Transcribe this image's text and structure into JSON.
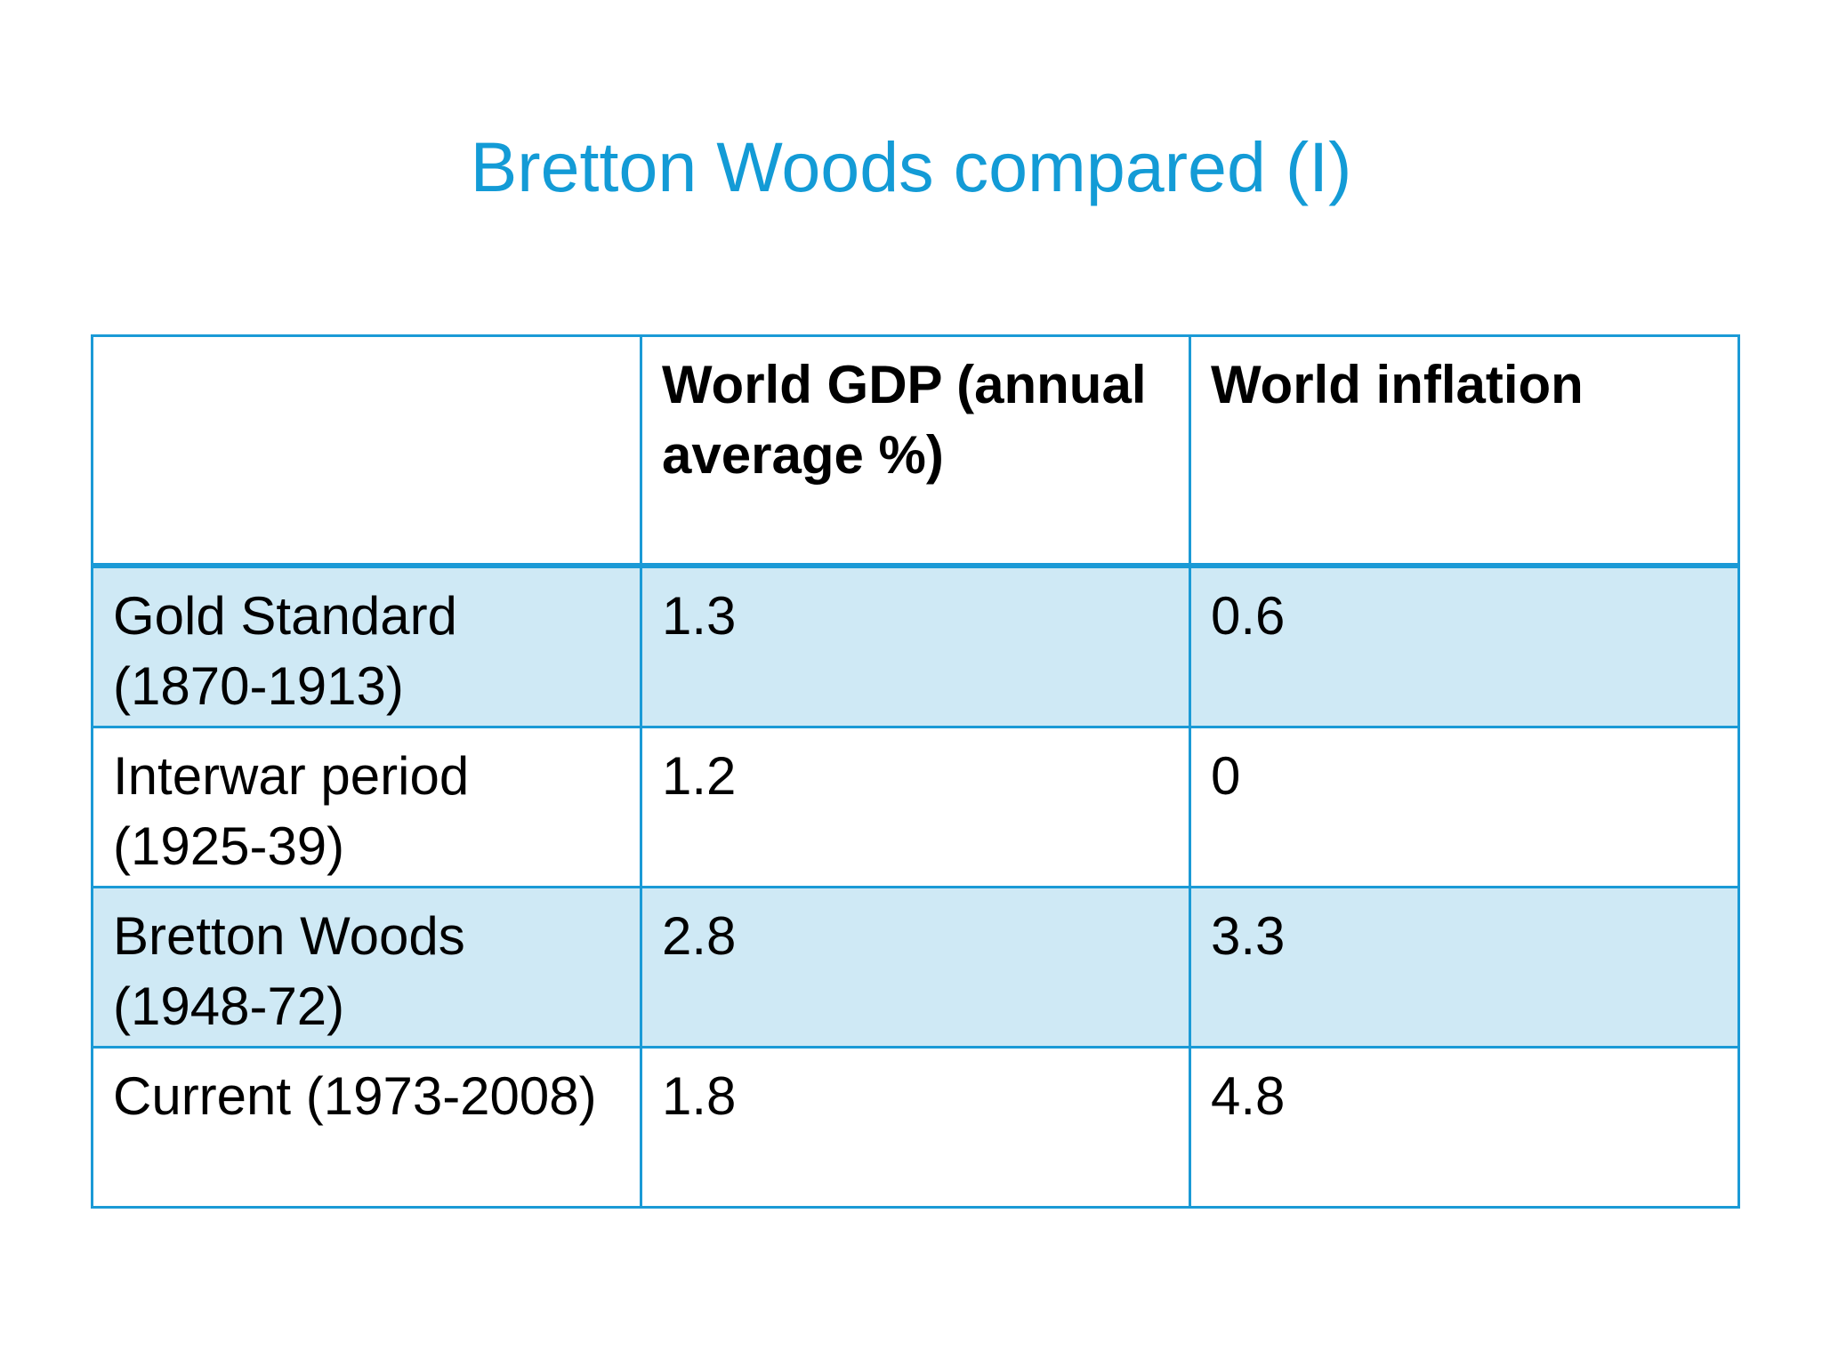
{
  "slide": {
    "title": "Bretton Woods compared (I)"
  },
  "table": {
    "headers": [
      "",
      "World GDP (annual average %)",
      "World inflation"
    ],
    "rows": [
      {
        "period": "Gold Standard (1870-1913)",
        "gdp": "1.3",
        "inflation": "0.6"
      },
      {
        "period": "Interwar period (1925-39)",
        "gdp": "1.2",
        "inflation": "0"
      },
      {
        "period": "Bretton Woods (1948-72)",
        "gdp": "2.8",
        "inflation": "3.3"
      },
      {
        "period": "Current (1973-2008)",
        "gdp": "1.8",
        "inflation": "4.8"
      }
    ]
  },
  "colors": {
    "title": "#139bd6",
    "border": "#1b9ad6",
    "shaded_row": "#cfe9f5",
    "text": "#000000"
  }
}
